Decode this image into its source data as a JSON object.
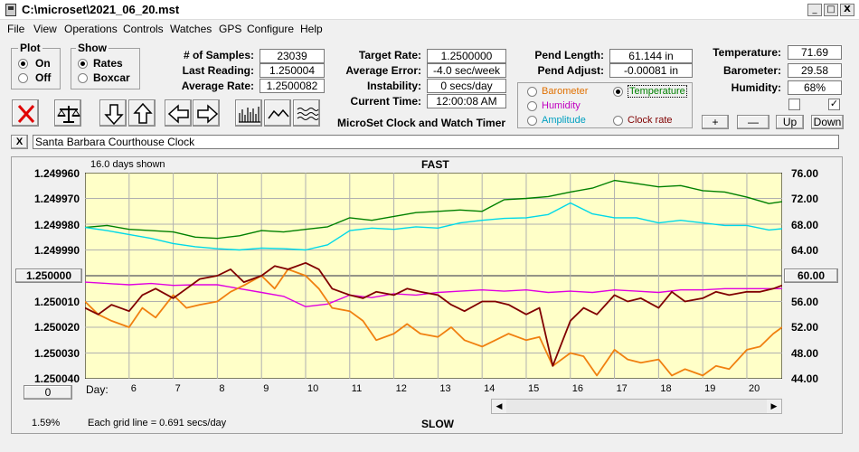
{
  "window": {
    "title": "C:\\microset\\2021_06_20.mst",
    "controls": [
      "_",
      "□",
      "X"
    ]
  },
  "menu": [
    "File",
    "View",
    "Operations",
    "Controls",
    "Watches",
    "GPS",
    "Configure",
    "Help"
  ],
  "plot_group": {
    "title": "Plot",
    "options": [
      "On",
      "Off"
    ],
    "selected": "On"
  },
  "show_group": {
    "title": "Show",
    "options": [
      "Rates",
      "Boxcar"
    ],
    "selected": "Rates"
  },
  "stats": {
    "samples_label": "# of Samples:",
    "samples": "23039",
    "last_reading_label": "Last Reading:",
    "last_reading": "1.250004",
    "average_rate_label": "Average Rate:",
    "average_rate": "1.2500082",
    "target_rate_label": "Target Rate:",
    "target_rate": "1.2500000",
    "average_error_label": "Average Error:",
    "average_error": "-4.0 sec/week",
    "instability_label": "Instability:",
    "instability": "0 secs/day",
    "current_time_label": "Current Time:",
    "current_time": "12:00:08 AM",
    "pend_length_label": "Pend Length:",
    "pend_length": "61.144 in",
    "pend_adjust_label": "Pend Adjust:",
    "pend_adjust": "-0.00081 in"
  },
  "env": {
    "temperature_label": "Temperature:",
    "temperature": "71.69",
    "barometer_label": "Barometer:",
    "barometer": "29.58",
    "humidity_label": "Humidity:",
    "humidity": "68%"
  },
  "overlay_options": {
    "barometer": "Barometer",
    "temperature": "Temperature",
    "humidity": "Humidity",
    "amplitude": "Amplitude",
    "clock_rate": "Clock rate",
    "selected": "Temperature",
    "colors": {
      "barometer": "#e07000",
      "temperature": "#008000",
      "humidity": "#c000c0",
      "amplitude": "#00a0c0",
      "clock_rate": "#800000"
    }
  },
  "scale_buttons": {
    "plus": "+",
    "minus": "—",
    "up": "Up",
    "down": "Down"
  },
  "app_subtitle": "MicroSet Clock and Watch Timer",
  "clock_name": "Santa Barbara Courthouse Clock",
  "close_x": "X",
  "chart_data": {
    "type": "line",
    "header": "FAST",
    "footer": "SLOW",
    "days_shown": "16.0 days shown",
    "grid_note": "Each grid line = 0.691 secs/day",
    "percent": "1.59%",
    "day_axis_label": "Day:",
    "x_ticks": [
      "6",
      "7",
      "8",
      "9",
      "10",
      "11",
      "12",
      "13",
      "14",
      "15",
      "16",
      "17",
      "18",
      "19",
      "20"
    ],
    "y_left_ticks": [
      "1.249960",
      "1.249970",
      "1.249980",
      "1.249990",
      "1.250000",
      "1.250010",
      "1.250020",
      "1.250030",
      "1.250040"
    ],
    "y_left_center_button": "1.250000",
    "y_left_bottom_button": "0",
    "y_right_ticks": [
      "76.00",
      "72.00",
      "68.00",
      "64.00",
      "60.00",
      "56.00",
      "52.00",
      "48.00",
      "44.00"
    ],
    "y_right_center_button": "60.00",
    "xlim": [
      5,
      20.8
    ],
    "ylim_left": [
      1.24996,
      1.25004
    ],
    "ylim_right": [
      76,
      44
    ],
    "background": "#ffffc8",
    "grid": true,
    "series": [
      {
        "color": "#008000",
        "x": [
          5,
          5.5,
          6,
          6.5,
          7,
          7.5,
          8,
          8.5,
          9,
          9.5,
          10,
          10.5,
          11,
          11.5,
          12,
          12.5,
          13,
          13.5,
          14,
          14.5,
          15,
          15.5,
          16,
          16.5,
          17,
          17.5,
          18,
          18.5,
          19,
          19.5,
          20,
          20.5,
          20.8
        ],
        "y": [
          67.5,
          67.8,
          67.2,
          67.0,
          66.8,
          66.0,
          65.8,
          66.2,
          67.0,
          66.8,
          67.2,
          67.6,
          69.0,
          68.6,
          69.2,
          69.8,
          70.0,
          70.2,
          70.0,
          71.8,
          72.0,
          72.3,
          73.0,
          73.6,
          74.8,
          74.3,
          73.8,
          74.0,
          73.2,
          73.0,
          72.2,
          71.2,
          71.5
        ]
      },
      {
        "color": "#00d8e8",
        "x": [
          5,
          5.5,
          6,
          6.5,
          7,
          7.5,
          8,
          8.5,
          9,
          9.5,
          10,
          10.5,
          11,
          11.5,
          12,
          12.5,
          13,
          13.5,
          14,
          14.5,
          15,
          15.5,
          16,
          16.5,
          17,
          17.5,
          18,
          18.5,
          19,
          19.5,
          20,
          20.5,
          20.8
        ],
        "y": [
          67.5,
          67.0,
          66.4,
          65.8,
          65.0,
          64.5,
          64.2,
          64.0,
          64.3,
          64.2,
          64.0,
          64.8,
          67.0,
          67.4,
          67.2,
          67.6,
          67.4,
          68.2,
          68.6,
          68.9,
          69.0,
          69.5,
          71.3,
          69.6,
          69.0,
          69.0,
          68.2,
          68.6,
          68.2,
          67.8,
          67.8,
          67.1,
          67.3
        ]
      },
      {
        "color": "#e000e0",
        "x": [
          5,
          5.5,
          6,
          6.5,
          7,
          7.5,
          8,
          8.5,
          9,
          9.5,
          10,
          10.5,
          11,
          11.5,
          12,
          12.5,
          13,
          13.5,
          14,
          14.5,
          15,
          15.5,
          16,
          16.5,
          17,
          17.5,
          18,
          18.5,
          19,
          19.5,
          20,
          20.5,
          20.8
        ],
        "y": [
          59.0,
          58.8,
          58.6,
          58.8,
          58.5,
          58.6,
          58.6,
          58.0,
          57.4,
          56.8,
          55.2,
          55.6,
          57.0,
          56.6,
          57.2,
          57.0,
          57.4,
          57.6,
          57.8,
          57.6,
          57.8,
          57.4,
          57.6,
          57.4,
          57.8,
          57.6,
          57.4,
          57.8,
          57.8,
          58.0,
          58.0,
          58.0,
          58.0
        ]
      },
      {
        "color": "#f08010",
        "x": [
          5,
          5.3,
          5.6,
          6,
          6.3,
          6.6,
          7,
          7.3,
          7.6,
          8,
          8.3,
          8.6,
          9,
          9.3,
          9.6,
          10,
          10.3,
          10.6,
          11,
          11.3,
          11.6,
          12,
          12.3,
          12.6,
          13,
          13.3,
          13.6,
          14,
          14.3,
          14.6,
          15,
          15.3,
          15.6,
          16,
          16.3,
          16.6,
          17,
          17.3,
          17.6,
          18,
          18.3,
          18.6,
          19,
          19.3,
          19.6,
          20,
          20.3,
          20.6,
          20.8
        ],
        "y": [
          56.0,
          54.0,
          53.0,
          52.0,
          55.0,
          53.5,
          57.0,
          55.0,
          55.5,
          56.0,
          57.5,
          58.5,
          60.0,
          58.0,
          61.0,
          60.0,
          58.0,
          55.0,
          54.5,
          53.0,
          50.0,
          51.0,
          52.5,
          51.0,
          50.5,
          52.0,
          50.0,
          49.0,
          50.0,
          51.0,
          50.0,
          50.5,
          46.0,
          48.0,
          47.5,
          44.5,
          48.5,
          47.0,
          46.5,
          47.0,
          44.5,
          45.5,
          44.5,
          46.0,
          45.5,
          48.5,
          49.0,
          51.0,
          52.0
        ]
      },
      {
        "color": "#800000",
        "x": [
          5,
          5.3,
          5.6,
          6,
          6.3,
          6.6,
          7,
          7.3,
          7.6,
          8,
          8.3,
          8.6,
          9,
          9.3,
          9.6,
          10,
          10.3,
          10.6,
          11,
          11.3,
          11.6,
          12,
          12.3,
          12.6,
          13,
          13.3,
          13.6,
          14,
          14.3,
          14.6,
          15,
          15.3,
          15.6,
          16,
          16.3,
          16.6,
          17,
          17.3,
          17.6,
          18,
          18.3,
          18.6,
          19,
          19.3,
          19.6,
          20,
          20.3,
          20.6,
          20.8
        ],
        "y": [
          55.0,
          54.0,
          55.5,
          54.5,
          57.0,
          58.0,
          56.5,
          58.0,
          59.5,
          60.0,
          61.0,
          59.0,
          60.0,
          61.5,
          61.0,
          62.0,
          61.0,
          58.0,
          57.0,
          56.5,
          57.5,
          57.0,
          58.0,
          57.5,
          57.0,
          55.5,
          54.5,
          56.0,
          56.0,
          55.5,
          54.0,
          55.0,
          46.0,
          53.0,
          55.0,
          54.0,
          57.0,
          56.0,
          56.5,
          55.0,
          57.5,
          56.0,
          56.5,
          57.5,
          57.0,
          57.5,
          57.5,
          58.0,
          58.5
        ]
      }
    ]
  }
}
